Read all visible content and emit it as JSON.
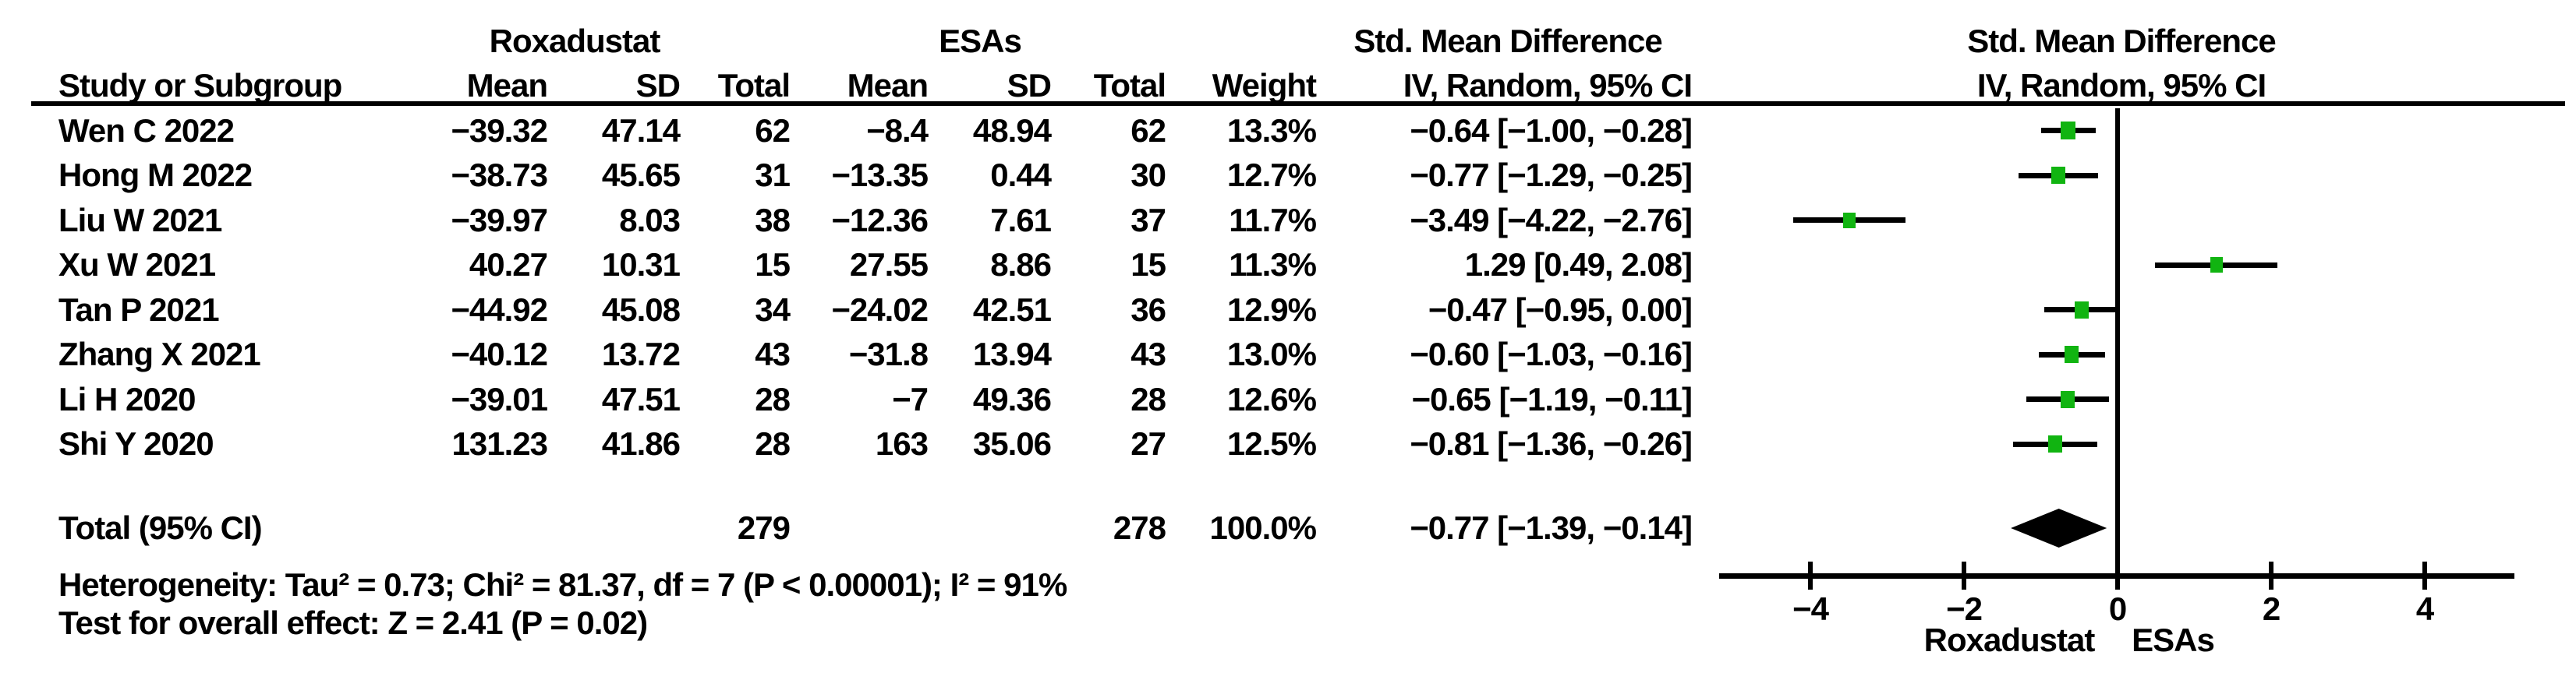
{
  "figure": {
    "kind": "forest-plot",
    "group_headers": {
      "treatment": "Roxadustat",
      "control": "ESAs",
      "effect_left": "Std. Mean Difference",
      "effect_plot_line1": "Std. Mean Difference",
      "effect_plot_line2": "IV, Random, 95% CI"
    },
    "column_headers": {
      "study": "Study or Subgroup",
      "mean1": "Mean",
      "sd1": "SD",
      "total1": "Total",
      "mean2": "Mean",
      "sd2": "SD",
      "total2": "Total",
      "weight": "Weight",
      "ci": "IV, Random, 95% CI"
    }
  },
  "colors": {
    "marker": "#11B411",
    "line": "#000000",
    "text": "#000000",
    "background": "#ffffff"
  },
  "chart_data": {
    "type": "scatter",
    "subtype": "forest-plot",
    "effect_measure": "Std. Mean Difference",
    "model": "IV, Random, 95% CI",
    "studies": [
      {
        "study": "Wen C 2022",
        "mean1": "−39.32",
        "sd1": "47.14",
        "n1": "62",
        "mean2": "−8.4",
        "sd2": "48.94",
        "n2": "62",
        "weight": "13.3%",
        "weight_num": 13.3,
        "est": -0.64,
        "lo": -1.0,
        "hi": -0.28,
        "ci_text": "−0.64 [−1.00, −0.28]"
      },
      {
        "study": "Hong M 2022",
        "mean1": "−38.73",
        "sd1": "45.65",
        "n1": "31",
        "mean2": "−13.35",
        "sd2": "0.44",
        "n2": "30",
        "weight": "12.7%",
        "weight_num": 12.7,
        "est": -0.77,
        "lo": -1.29,
        "hi": -0.25,
        "ci_text": "−0.77 [−1.29, −0.25]"
      },
      {
        "study": "Liu W 2021",
        "mean1": "−39.97",
        "sd1": "8.03",
        "n1": "38",
        "mean2": "−12.36",
        "sd2": "7.61",
        "n2": "37",
        "weight": "11.7%",
        "weight_num": 11.7,
        "est": -3.49,
        "lo": -4.22,
        "hi": -2.76,
        "ci_text": "−3.49 [−4.22, −2.76]"
      },
      {
        "study": "Xu W 2021",
        "mean1": "40.27",
        "sd1": "10.31",
        "n1": "15",
        "mean2": "27.55",
        "sd2": "8.86",
        "n2": "15",
        "weight": "11.3%",
        "weight_num": 11.3,
        "est": 1.29,
        "lo": 0.49,
        "hi": 2.08,
        "ci_text": "1.29 [0.49, 2.08]"
      },
      {
        "study": "Tan P 2021",
        "mean1": "−44.92",
        "sd1": "45.08",
        "n1": "34",
        "mean2": "−24.02",
        "sd2": "42.51",
        "n2": "36",
        "weight": "12.9%",
        "weight_num": 12.9,
        "est": -0.47,
        "lo": -0.95,
        "hi": 0.0,
        "ci_text": "−0.47 [−0.95, 0.00]"
      },
      {
        "study": "Zhang X 2021",
        "mean1": "−40.12",
        "sd1": "13.72",
        "n1": "43",
        "mean2": "−31.8",
        "sd2": "13.94",
        "n2": "43",
        "weight": "13.0%",
        "weight_num": 13.0,
        "est": -0.6,
        "lo": -1.03,
        "hi": -0.16,
        "ci_text": "−0.60 [−1.03, −0.16]"
      },
      {
        "study": "Li H 2020",
        "mean1": "−39.01",
        "sd1": "47.51",
        "n1": "28",
        "mean2": "−7",
        "sd2": "49.36",
        "n2": "28",
        "weight": "12.6%",
        "weight_num": 12.6,
        "est": -0.65,
        "lo": -1.19,
        "hi": -0.11,
        "ci_text": "−0.65 [−1.19, −0.11]"
      },
      {
        "study": "Shi Y 2020",
        "mean1": "131.23",
        "sd1": "41.86",
        "n1": "28",
        "mean2": "163",
        "sd2": "35.06",
        "n2": "27",
        "weight": "12.5%",
        "weight_num": 12.5,
        "est": -0.81,
        "lo": -1.36,
        "hi": -0.26,
        "ci_text": "−0.81 [−1.36, −0.26]"
      }
    ],
    "total": {
      "label": "Total (95% CI)",
      "n1": "279",
      "n2": "278",
      "weight": "100.0%",
      "est": -0.77,
      "lo": -1.39,
      "hi": -0.14,
      "ci_text": "−0.77 [−1.39, −0.14]"
    },
    "heterogeneity": "Heterogeneity: Tau² = 0.73; Chi² = 81.37, df = 7 (P < 0.00001); I² = 91%",
    "overall_effect": "Test for overall effect: Z = 2.41 (P = 0.02)",
    "axis": {
      "xlim": [
        -5.2,
        5.2
      ],
      "ticks": [
        {
          "value": -4,
          "label": "−4"
        },
        {
          "value": -2,
          "label": "−2"
        },
        {
          "value": 0,
          "label": "0"
        },
        {
          "value": 2,
          "label": "2"
        },
        {
          "value": 4,
          "label": "4"
        }
      ],
      "favours_left": "Roxadustat",
      "favours_right": "ESAs"
    }
  }
}
